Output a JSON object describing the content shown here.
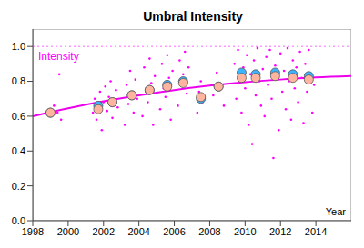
{
  "chart_data": {
    "type": "scatter",
    "title": "Umbral Intensity",
    "x_label": "Year",
    "legend": "upper left",
    "grid": false,
    "xlim": [
      1998,
      2016
    ],
    "xticks": [
      1998,
      2000,
      2002,
      2004,
      2006,
      2008,
      2010,
      2012,
      2014
    ],
    "ylim": [
      0,
      1.1
    ],
    "yticks": [
      {
        "value": 0,
        "label": "0.0"
      },
      {
        "value": 0.2,
        "label": "0.2"
      },
      {
        "value": 0.4,
        "label": "0.4"
      },
      {
        "value": 0.6,
        "label": "0.6"
      },
      {
        "value": 0.8,
        "label": "0.8"
      },
      {
        "value": 1,
        "label": "1.0"
      }
    ],
    "hlines": [
      {
        "value": 1,
        "color": "#ff66ff",
        "line_style": "dotted"
      }
    ],
    "series": [
      {
        "name": "Intensity",
        "type": "scatter",
        "marker": "point",
        "color": "#ff00ff",
        "x": [
          1999.0,
          1999.1,
          1999.2,
          1999.4,
          1999.5,
          1999.6,
          2001.4,
          2001.5,
          2001.6,
          2001.7,
          2001.8,
          2001.9,
          2002.0,
          2002.1,
          2002.2,
          2002.3,
          2002.4,
          2002.5,
          2002.6,
          2002.7,
          2002.8,
          2003.2,
          2003.3,
          2003.4,
          2003.5,
          2003.6,
          2003.7,
          2003.8,
          2003.9,
          2004.2,
          2004.3,
          2004.4,
          2004.5,
          2004.6,
          2004.7,
          2004.8,
          2004.9,
          2005.2,
          2005.3,
          2005.4,
          2005.5,
          2005.6,
          2005.7,
          2005.8,
          2005.9,
          2006.2,
          2006.3,
          2006.4,
          2006.5,
          2006.6,
          2006.7,
          2006.8,
          2007.3,
          2007.4,
          2007.5,
          2007.6,
          2008.2,
          2008.4,
          2008.6,
          2008.8,
          2009.4,
          2009.5,
          2009.6,
          2009.7,
          2009.8,
          2009.9,
          2010.0,
          2010.1,
          2010.2,
          2010.3,
          2010.4,
          2010.5,
          2010.6,
          2010.7,
          2010.8,
          2010.9,
          2011.0,
          2011.1,
          2011.2,
          2011.3,
          2011.4,
          2011.5,
          2011.6,
          2011.7,
          2011.8,
          2011.9,
          2012.0,
          2012.1,
          2012.2,
          2012.3,
          2012.4,
          2012.5,
          2012.6,
          2012.7,
          2012.8,
          2012.9,
          2013.0,
          2013.1,
          2013.2,
          2013.3,
          2013.4,
          2013.5,
          2013.6,
          2013.7,
          2013.8,
          2013.9
        ],
        "values": [
          0.6,
          0.63,
          0.66,
          0.62,
          0.84,
          0.58,
          0.62,
          0.7,
          0.58,
          0.66,
          0.74,
          0.52,
          0.68,
          0.77,
          0.63,
          0.71,
          0.8,
          0.59,
          0.69,
          0.75,
          0.65,
          0.55,
          0.78,
          0.67,
          0.86,
          0.72,
          0.62,
          0.81,
          0.7,
          0.6,
          0.88,
          0.74,
          0.68,
          0.93,
          0.79,
          0.55,
          0.83,
          0.64,
          0.9,
          0.76,
          0.71,
          0.95,
          0.82,
          0.58,
          0.86,
          0.66,
          0.92,
          0.78,
          0.84,
          0.97,
          0.73,
          0.88,
          0.62,
          0.74,
          0.8,
          0.68,
          0.72,
          0.85,
          0.78,
          0.66,
          0.9,
          0.7,
          0.98,
          0.82,
          0.62,
          0.88,
          0.76,
          0.95,
          0.55,
          0.84,
          0.44,
          0.92,
          0.72,
          0.99,
          0.8,
          0.66,
          0.87,
          0.6,
          0.94,
          0.78,
          0.98,
          0.7,
          0.36,
          0.89,
          0.82,
          0.52,
          0.96,
          0.74,
          0.86,
          0.64,
          0.99,
          0.8,
          0.58,
          0.92,
          0.76,
          0.88,
          0.68,
          0.97,
          0.82,
          0.56,
          0.9,
          0.74,
          0.98,
          0.84,
          0.62,
          0.78
        ]
      },
      {
        "type": "line",
        "marker": "none",
        "line_style": "solid",
        "color": "#ee00ee",
        "x": [
          1998,
          2000,
          2002,
          2004,
          2006,
          2008,
          2010,
          2012,
          2014,
          2016
        ],
        "values": [
          0.6,
          0.645,
          0.685,
          0.72,
          0.75,
          0.775,
          0.795,
          0.81,
          0.822,
          0.83
        ]
      },
      {
        "type": "scatter",
        "marker": "circle",
        "color": "#3cb4ff",
        "x": [
          1999.0,
          2001.7,
          2002.5,
          2003.6,
          2004.6,
          2005.6,
          2006.5,
          2007.5,
          2008.5,
          2009.8,
          2010.6,
          2011.7,
          2012.7,
          2013.6
        ],
        "values": [
          0.62,
          0.66,
          0.68,
          0.72,
          0.75,
          0.78,
          0.8,
          0.7,
          0.77,
          0.85,
          0.84,
          0.85,
          0.84,
          0.83
        ]
      },
      {
        "type": "scatter",
        "marker": "circle",
        "color": "#ffb4a0",
        "x": [
          1999.0,
          2001.7,
          2002.5,
          2003.6,
          2004.6,
          2005.6,
          2006.5,
          2007.5,
          2008.5,
          2009.8,
          2010.6,
          2011.7,
          2012.7,
          2013.6
        ],
        "values": [
          0.62,
          0.64,
          0.68,
          0.72,
          0.75,
          0.77,
          0.79,
          0.71,
          0.77,
          0.82,
          0.82,
          0.83,
          0.82,
          0.81
        ]
      }
    ]
  }
}
